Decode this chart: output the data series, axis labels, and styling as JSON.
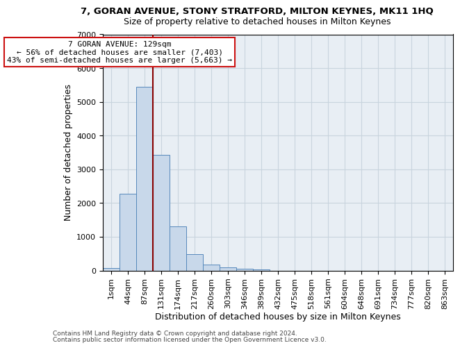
{
  "title": "7, GORAN AVENUE, STONY STRATFORD, MILTON KEYNES, MK11 1HQ",
  "subtitle": "Size of property relative to detached houses in Milton Keynes",
  "xlabel": "Distribution of detached houses by size in Milton Keynes",
  "ylabel": "Number of detached properties",
  "footnote1": "Contains HM Land Registry data © Crown copyright and database right 2024.",
  "footnote2": "Contains public sector information licensed under the Open Government Licence v3.0.",
  "bar_labels": [
    "1sqm",
    "44sqm",
    "87sqm",
    "131sqm",
    "174sqm",
    "217sqm",
    "260sqm",
    "303sqm",
    "346sqm",
    "389sqm",
    "432sqm",
    "475sqm",
    "518sqm",
    "561sqm",
    "604sqm",
    "648sqm",
    "691sqm",
    "734sqm",
    "777sqm",
    "820sqm",
    "863sqm"
  ],
  "bar_values": [
    80,
    2280,
    5450,
    3420,
    1310,
    480,
    170,
    100,
    60,
    40,
    0,
    0,
    0,
    0,
    0,
    0,
    0,
    0,
    0,
    0,
    0
  ],
  "bar_color": "#c8d8ea",
  "bar_edge_color": "#5588bb",
  "vline_color": "#880000",
  "vline_pos": 2.5,
  "ylim_max": 7000,
  "annotation_line1": "7 GORAN AVENUE: 129sqm",
  "annotation_line2": "← 56% of detached houses are smaller (7,403)",
  "annotation_line3": "43% of semi-detached houses are larger (5,663) →",
  "annotation_box_edgecolor": "#cc1111",
  "grid_color": "#c8d4de",
  "bg_color": "#e8eef4",
  "fig_bg": "#ffffff",
  "title_fontsize": 9.5,
  "subtitle_fontsize": 9,
  "ylabel_fontsize": 9,
  "xlabel_fontsize": 9,
  "tick_fontsize": 8,
  "annotation_fontsize": 8,
  "footnote_fontsize": 6.5
}
